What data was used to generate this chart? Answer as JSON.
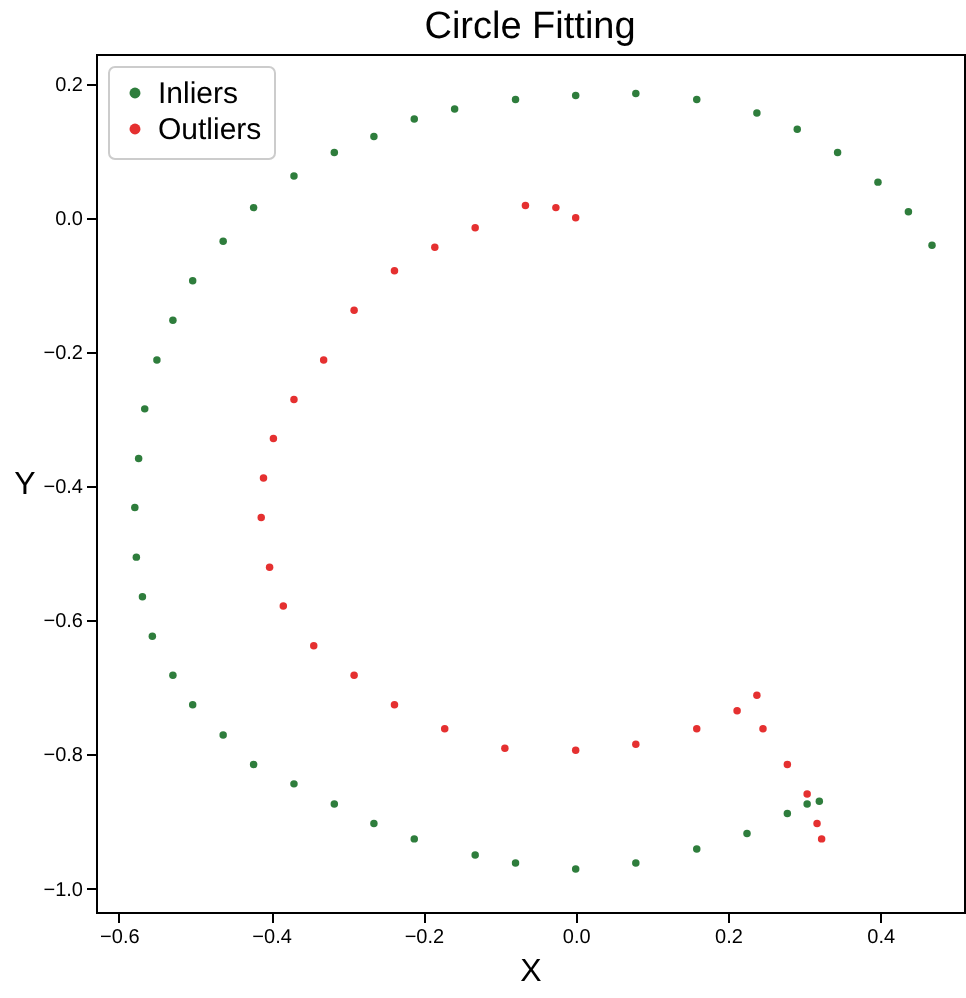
{
  "chart_data": {
    "type": "scatter",
    "title": "Circle Fitting",
    "xlabel": "X",
    "ylabel": "Y",
    "xlim": [
      -0.63,
      0.51
    ],
    "ylim": [
      -1.035,
      0.244
    ],
    "xticks": [
      -0.6,
      -0.4,
      -0.2,
      {
        "value": 0,
        "label": "0.0"
      },
      0.2,
      0.4
    ],
    "yticks": [
      {
        "value": -1,
        "label": "−1.0"
      },
      -0.8,
      -0.6,
      -0.4,
      -0.2,
      {
        "value": 0,
        "label": "0.0"
      },
      0.2
    ],
    "grid": false,
    "legend": "top left",
    "marker": "circle",
    "series": [
      {
        "name": "Inliers",
        "color": "#2e7d3c",
        "x": [
          0.468,
          0.437,
          0.397,
          0.344,
          0.291,
          0.238,
          0.159,
          0.079,
          0.0,
          -0.079,
          -0.159,
          -0.212,
          -0.265,
          -0.317,
          -0.37,
          -0.423,
          -0.463,
          -0.503,
          -0.529,
          -0.55,
          -0.566,
          -0.574,
          -0.579,
          -0.577,
          -0.569,
          -0.556,
          -0.529,
          -0.503,
          -0.463,
          -0.423,
          -0.37,
          -0.317,
          -0.265,
          -0.212,
          -0.132,
          -0.079,
          0.0,
          0.079,
          0.159,
          0.225,
          0.278,
          0.304,
          0.32
        ],
        "values": [
          -0.041,
          0.009,
          0.053,
          0.097,
          0.132,
          0.156,
          0.176,
          0.185,
          0.182,
          0.176,
          0.162,
          0.147,
          0.121,
          0.097,
          0.062,
          0.015,
          -0.035,
          -0.094,
          -0.153,
          -0.212,
          -0.285,
          -0.359,
          -0.432,
          -0.506,
          -0.565,
          -0.624,
          -0.682,
          -0.726,
          -0.771,
          -0.815,
          -0.844,
          -0.874,
          -0.903,
          -0.926,
          -0.95,
          -0.962,
          -0.971,
          -0.962,
          -0.941,
          -0.918,
          -0.888,
          -0.874,
          -0.87
        ]
      },
      {
        "name": "Outliers",
        "color": "#e53030",
        "x": [
          0.0,
          -0.026,
          -0.066,
          -0.132,
          -0.185,
          -0.238,
          -0.291,
          -0.331,
          -0.37,
          -0.397,
          -0.41,
          -0.413,
          -0.402,
          -0.384,
          -0.344,
          -0.291,
          -0.238,
          -0.172,
          -0.093,
          0.0,
          0.079,
          0.159,
          0.212,
          0.238,
          0.246,
          0.278,
          0.304,
          0.317,
          0.323
        ],
        "values": [
          0.0,
          0.015,
          0.018,
          -0.015,
          -0.044,
          -0.079,
          -0.138,
          -0.212,
          -0.271,
          -0.329,
          -0.388,
          -0.447,
          -0.521,
          -0.579,
          -0.638,
          -0.682,
          -0.726,
          -0.762,
          -0.791,
          -0.794,
          -0.785,
          -0.762,
          -0.735,
          -0.712,
          -0.762,
          -0.815,
          -0.859,
          -0.903,
          -0.926
        ]
      }
    ]
  }
}
